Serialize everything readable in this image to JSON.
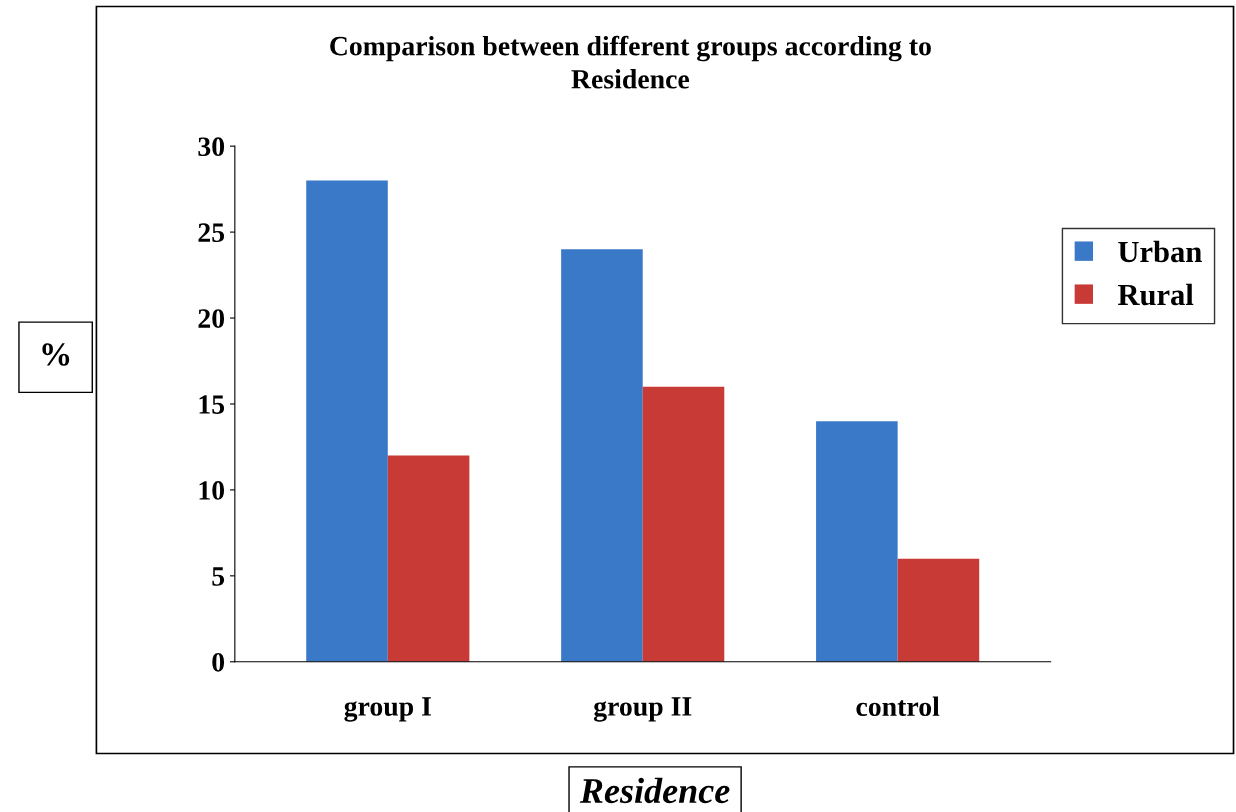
{
  "chart_data": {
    "type": "bar",
    "title": "Comparison between different groups according to\nResidence",
    "ylabel": "%",
    "xlabel": "Residence",
    "categories": [
      "group I",
      "group II",
      "control"
    ],
    "series": [
      {
        "name": "Urban",
        "color": "#3a78c8",
        "values": [
          28,
          24,
          14
        ]
      },
      {
        "name": "Rural",
        "color": "#c83a36",
        "values": [
          12,
          16,
          6
        ]
      }
    ],
    "ylim": [
      0,
      30
    ],
    "yticks": [
      0,
      5,
      10,
      15,
      20,
      25,
      30
    ],
    "grid": false,
    "legend": "right"
  }
}
